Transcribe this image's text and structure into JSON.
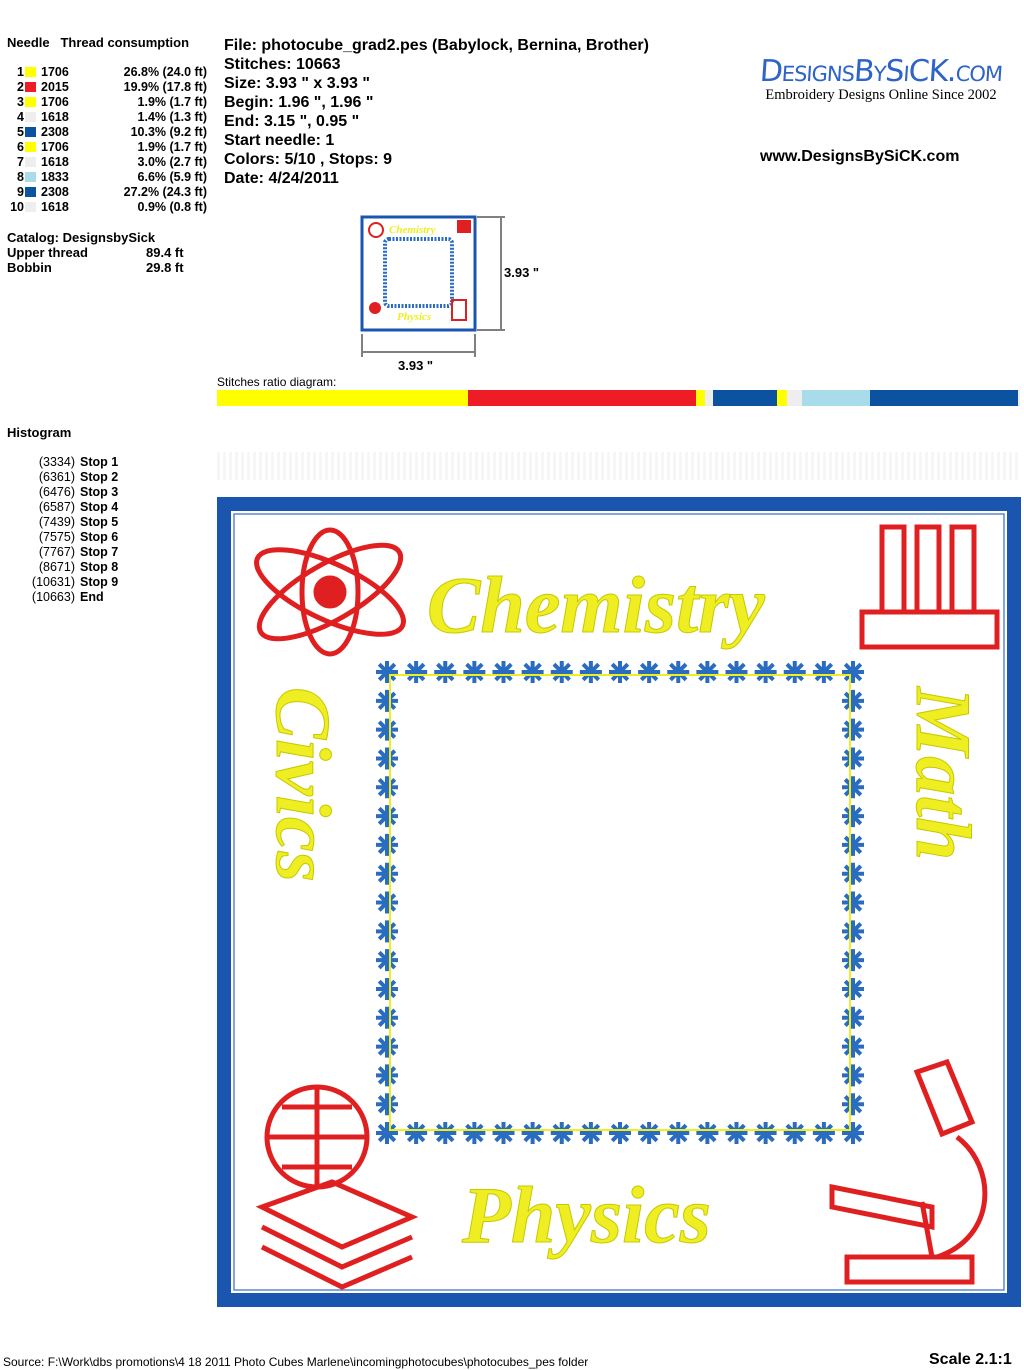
{
  "needle_table": {
    "header_needle": "Needle",
    "header_thread": "Thread consumption",
    "rows": [
      {
        "n": "1",
        "color": "#FFFF00",
        "code": "1706",
        "pct": "26.8% (24.0 ft)"
      },
      {
        "n": "2",
        "color": "#EE1C25",
        "code": "2015",
        "pct": "19.9% (17.8 ft)"
      },
      {
        "n": "3",
        "color": "#FFFF00",
        "code": "1706",
        "pct": "1.9% (1.7 ft)"
      },
      {
        "n": "4",
        "color": "#EEEEEE",
        "code": "1618",
        "pct": "1.4% (1.3 ft)"
      },
      {
        "n": "5",
        "color": "#0B52A0",
        "code": "2308",
        "pct": "10.3% (9.2 ft)"
      },
      {
        "n": "6",
        "color": "#FFFF00",
        "code": "1706",
        "pct": "1.9% (1.7 ft)"
      },
      {
        "n": "7",
        "color": "#EEEEEE",
        "code": "1618",
        "pct": "3.0% (2.7 ft)"
      },
      {
        "n": "8",
        "color": "#A8DCEA",
        "code": "1833",
        "pct": "6.6% (5.9 ft)"
      },
      {
        "n": "9",
        "color": "#0B52A0",
        "code": "2308",
        "pct": "27.2% (24.3 ft)"
      },
      {
        "n": "10",
        "color": "#EEEEEE",
        "code": "1618",
        "pct": "0.9% (0.8 ft)"
      }
    ],
    "catalog": "Catalog: DesignsbySick",
    "upper_label": "Upper thread",
    "upper_value": "89.4 ft",
    "bobbin_label": "Bobbin",
    "bobbin_value": "29.8 ft"
  },
  "info": {
    "file": "File: photocube_grad2.pes  (Babylock, Bernina, Brother)",
    "stitches": "Stitches: 10663",
    "size": "Size: 3.93 \" x 3.93 \"",
    "begin": "Begin: 1.96 \", 1.96 \"",
    "end": "End: 3.15 \", 0.95 \"",
    "start_needle": "Start needle: 1",
    "colors": "Colors: 5/10 , Stops: 9",
    "date": "Date: 4/24/2011"
  },
  "logo": {
    "name": "DesignsBySiCK.com",
    "tagline": "Embroidery Designs Online Since 2002",
    "url": "www.DesignsBySiCK.com",
    "color": "#2E63C8"
  },
  "thumbnail": {
    "width_label": "3.93 \"",
    "height_label": "3.93 \""
  },
  "ratio": {
    "label": "Stitches ratio diagram:"
  },
  "histogram": {
    "title": "Histogram",
    "total": 10663,
    "stops": [
      {
        "count": "(3334)",
        "value": 3334,
        "label": "Stop 1"
      },
      {
        "count": "(6361)",
        "value": 6361,
        "label": "Stop 2"
      },
      {
        "count": "(6476)",
        "value": 6476,
        "label": "Stop 3"
      },
      {
        "count": "(6587)",
        "value": 6587,
        "label": "Stop 4"
      },
      {
        "count": "(7439)",
        "value": 7439,
        "label": "Stop 5"
      },
      {
        "count": "(7575)",
        "value": 7575,
        "label": "Stop 6"
      },
      {
        "count": "(7767)",
        "value": 7767,
        "label": "Stop 7"
      },
      {
        "count": "(8671)",
        "value": 8671,
        "label": "Stop 8"
      },
      {
        "count": "(10631)",
        "value": 10631,
        "label": "Stop 9"
      },
      {
        "count": "(10663)",
        "value": 10663,
        "label": "End"
      }
    ]
  },
  "design": {
    "words": {
      "top": "Chemistry",
      "left": "Civics",
      "right": "Math",
      "bottom": "Physics"
    },
    "colors": {
      "border": "#1A56B0",
      "text": "#EEEE22",
      "icons": "#E02020",
      "stars": "#2A6CC0"
    }
  },
  "footer": {
    "source": "Source: F:\\Work\\dbs promotions\\4 18 2011 Photo Cubes Marlene\\incomingphotocubes\\photocubes_pes folder",
    "scale": "Scale 2.1:1"
  }
}
